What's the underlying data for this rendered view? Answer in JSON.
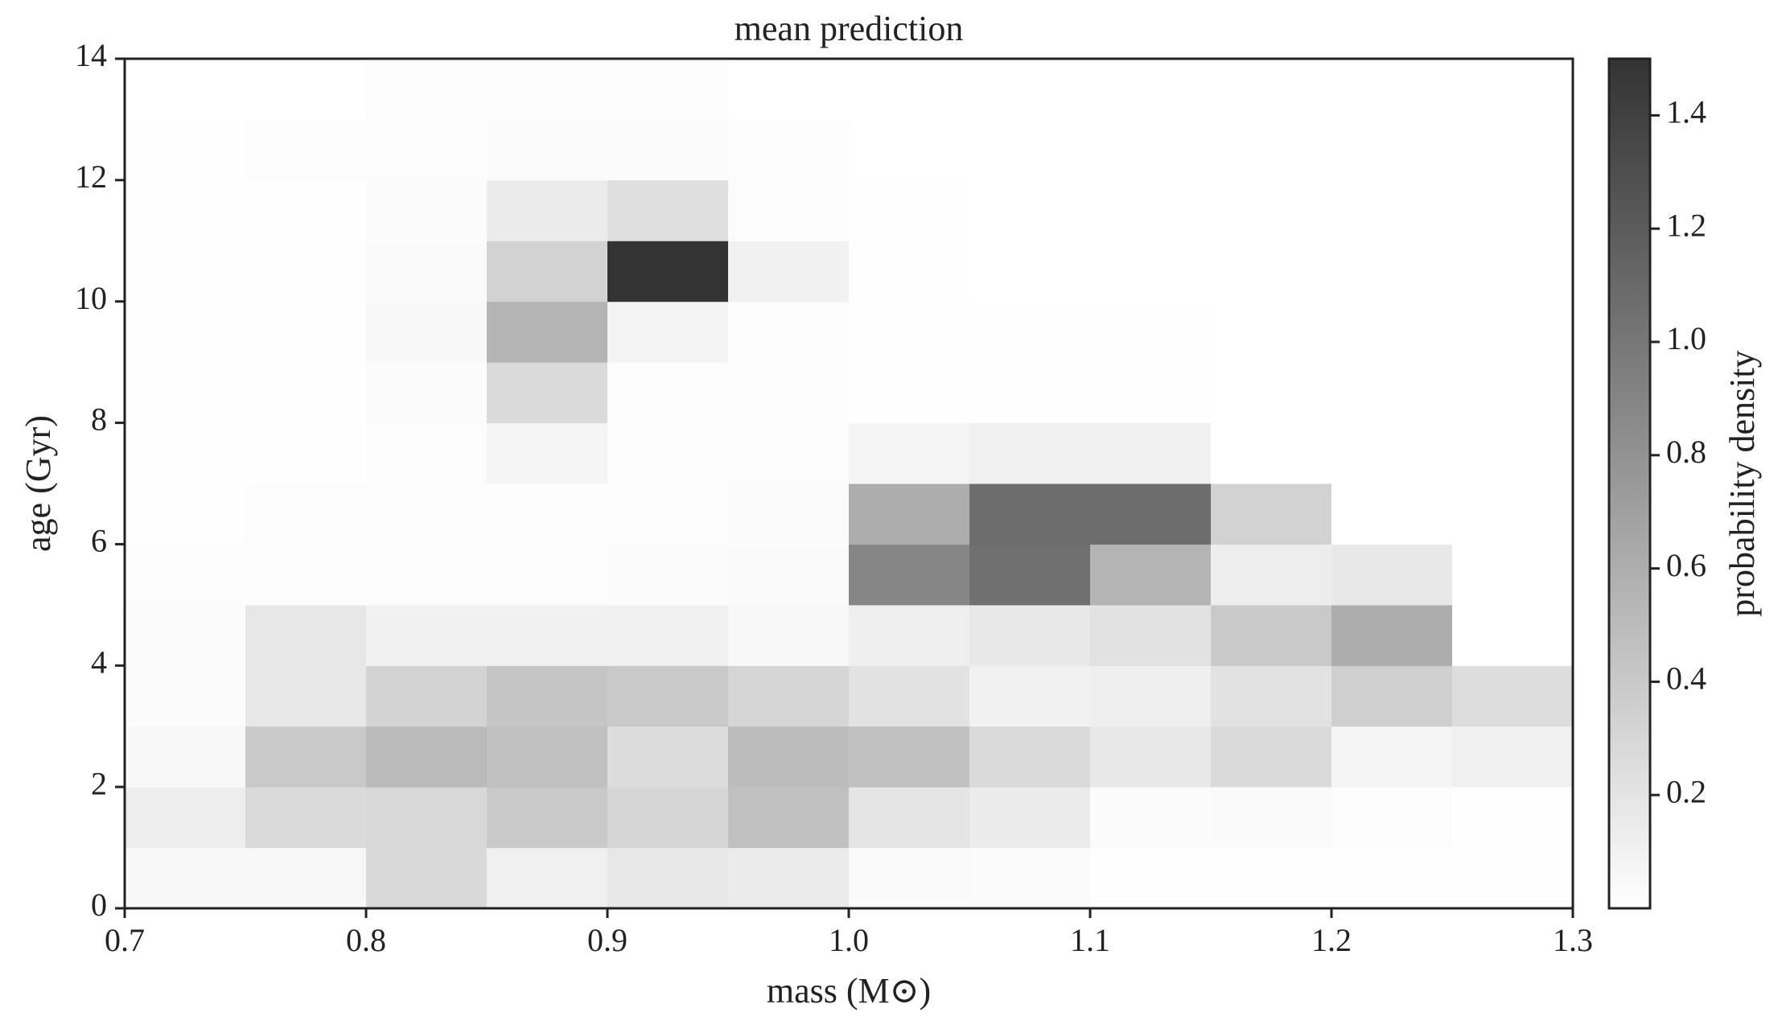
{
  "chart_data": {
    "type": "heatmap",
    "title": "mean prediction",
    "x_label": "mass (M⊙)",
    "y_label": "age (Gyr)",
    "colorbar_label": "probability density",
    "x_edges": [
      0.7,
      0.75,
      0.8,
      0.85,
      0.9,
      0.95,
      1.0,
      1.05,
      1.1,
      1.15,
      1.2,
      1.25,
      1.3
    ],
    "y_edges": [
      0,
      1,
      2,
      3,
      4,
      5,
      6,
      7,
      8,
      9,
      10,
      11,
      12,
      13,
      14
    ],
    "values": [
      [
        0.05,
        0.05,
        0.28,
        0.11,
        0.18,
        0.15,
        0.04,
        0.03,
        0.01,
        0.01,
        0.01,
        0.01
      ],
      [
        0.13,
        0.27,
        0.29,
        0.4,
        0.31,
        0.46,
        0.2,
        0.15,
        0.03,
        0.04,
        0.02,
        0.01
      ],
      [
        0.05,
        0.4,
        0.51,
        0.46,
        0.26,
        0.49,
        0.46,
        0.27,
        0.17,
        0.27,
        0.07,
        0.11
      ],
      [
        0.03,
        0.18,
        0.32,
        0.43,
        0.4,
        0.31,
        0.21,
        0.1,
        0.12,
        0.21,
        0.35,
        0.25
      ],
      [
        0.03,
        0.18,
        0.1,
        0.1,
        0.1,
        0.05,
        0.12,
        0.17,
        0.21,
        0.4,
        0.6,
        0
      ],
      [
        0.02,
        0.02,
        0.02,
        0.02,
        0.03,
        0.04,
        0.89,
        1.05,
        0.55,
        0.13,
        0.17,
        0
      ],
      [
        0.01,
        0.02,
        0.02,
        0.02,
        0.02,
        0.03,
        0.6,
        1.07,
        1.07,
        0.33,
        0,
        0
      ],
      [
        0.01,
        0.01,
        0.02,
        0.07,
        0.02,
        0.02,
        0.07,
        0.11,
        0.11,
        0,
        0,
        0
      ],
      [
        0.01,
        0.01,
        0.03,
        0.27,
        0.02,
        0.02,
        0.01,
        0.01,
        0.01,
        0,
        0,
        0
      ],
      [
        0.01,
        0.01,
        0.05,
        0.55,
        0.09,
        0.02,
        0.01,
        0.01,
        0.01,
        0,
        0,
        0
      ],
      [
        0.01,
        0.01,
        0.04,
        0.33,
        1.5,
        0.1,
        0.01,
        0,
        0,
        0,
        0,
        0
      ],
      [
        0.01,
        0.01,
        0.03,
        0.15,
        0.24,
        0.02,
        0.01,
        0,
        0,
        0,
        0,
        0
      ],
      [
        0.01,
        0.02,
        0.02,
        0.03,
        0.03,
        0.02,
        0,
        0,
        0,
        0,
        0,
        0
      ],
      [
        0,
        0,
        0.02,
        0.02,
        0.02,
        0,
        0,
        0,
        0,
        0,
        0,
        0
      ]
    ],
    "colormap": [
      "#ffffff",
      "#333333"
    ],
    "xlim": [
      0.7,
      1.3
    ],
    "xticks": [
      0.7,
      0.8,
      0.9,
      {
        "value": 1,
        "label": "1.0"
      },
      1.1,
      1.2,
      1.3
    ],
    "ylim": [
      0,
      14
    ],
    "yticks": [
      0,
      2,
      4,
      6,
      8,
      10,
      12,
      14
    ],
    "clim": [
      0,
      1.5
    ],
    "cticks": [
      0.2,
      0.4,
      0.6,
      0.8,
      {
        "value": 1,
        "label": "1.0"
      },
      1.2,
      1.4
    ]
  }
}
